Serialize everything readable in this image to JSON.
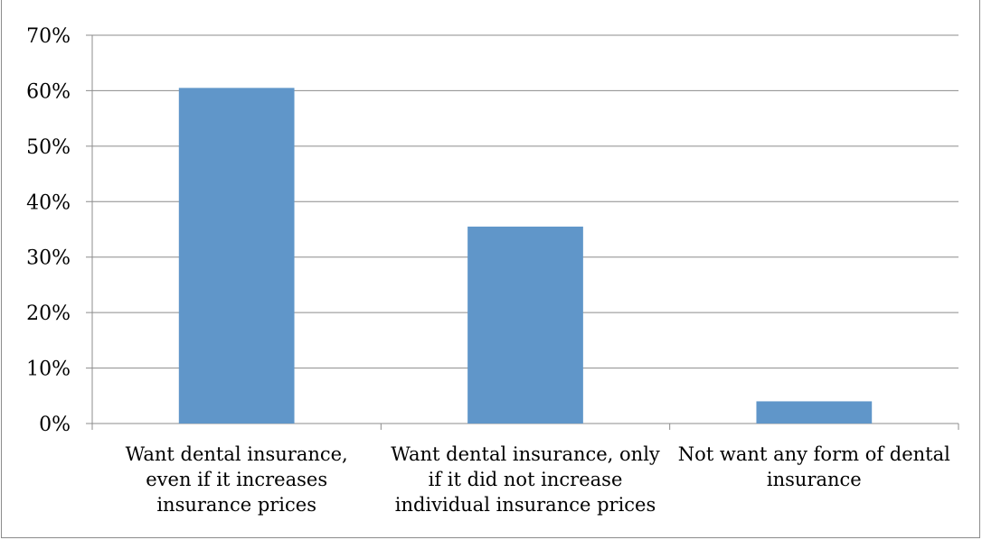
{
  "chart_data": {
    "type": "bar",
    "title": "",
    "xlabel": "",
    "ylabel": "",
    "categories": [
      [
        "Want dental insurance,",
        "even if it increases",
        "insurance prices"
      ],
      [
        "Want dental insurance, only",
        "if it did not increase",
        "individual insurance prices"
      ],
      [
        "Not want any form of dental",
        "insurance"
      ]
    ],
    "values": [
      60.5,
      35.5,
      4
    ],
    "y_ticks": [
      "0%",
      "10%",
      "20%",
      "30%",
      "40%",
      "50%",
      "60%",
      "70%"
    ],
    "ylim": [
      0,
      70
    ],
    "grid": true,
    "legend": "none",
    "bar_color": "#6096c9"
  }
}
